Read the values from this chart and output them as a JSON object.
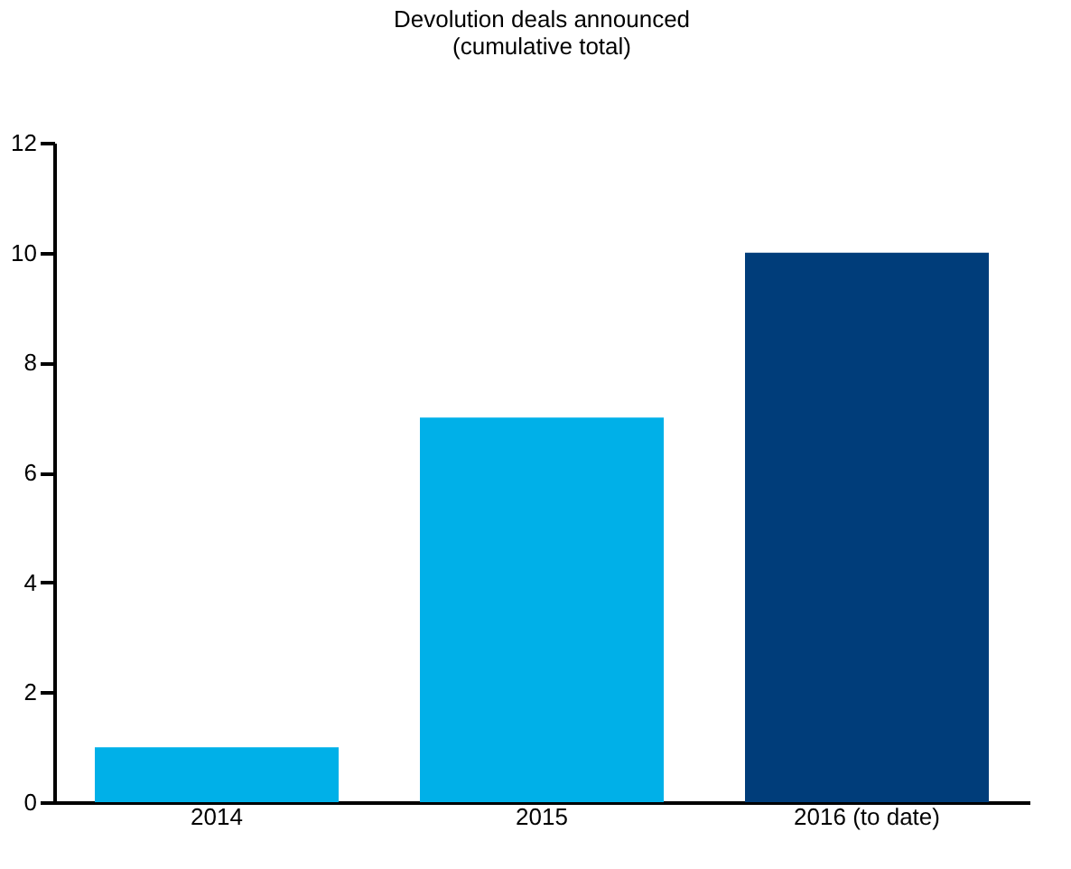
{
  "chart_data": {
    "type": "bar",
    "title": [
      "Devolution deals announced",
      "(cumulative total)"
    ],
    "categories": [
      "2014",
      "2015",
      "2016 (to date)"
    ],
    "values": [
      1,
      7,
      10
    ],
    "colors": [
      "#00b0e8",
      "#00b0e8",
      "#003d7a"
    ],
    "ylim": [
      0,
      12
    ],
    "yticks": [
      0,
      2,
      4,
      6,
      8,
      10,
      12
    ],
    "grid": false
  }
}
